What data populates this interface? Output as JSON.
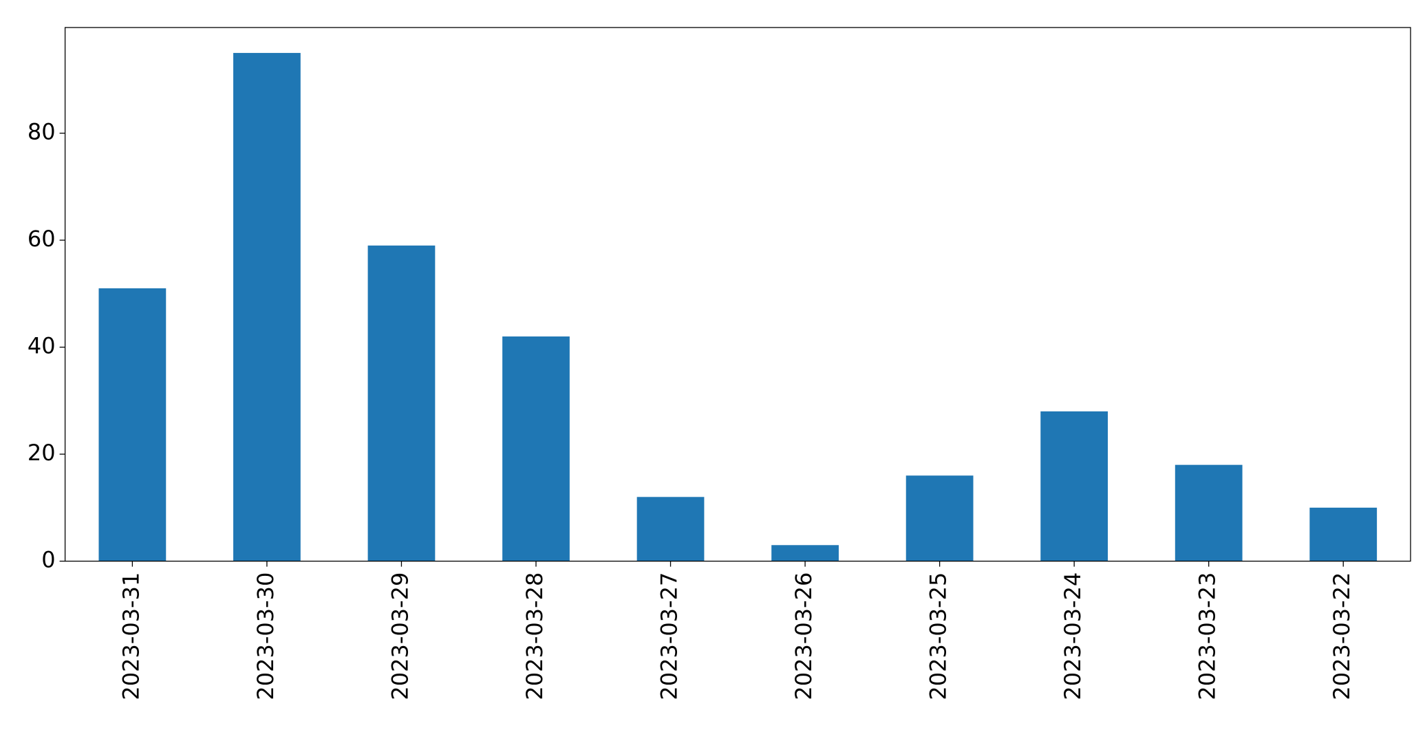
{
  "chart_data": {
    "type": "bar",
    "categories": [
      "2023-03-31",
      "2023-03-30",
      "2023-03-29",
      "2023-03-28",
      "2023-03-27",
      "2023-03-26",
      "2023-03-25",
      "2023-03-24",
      "2023-03-23",
      "2023-03-22"
    ],
    "values": [
      51,
      95,
      59,
      42,
      12,
      3,
      16,
      28,
      18,
      10
    ],
    "color": "#1f77b4",
    "ylim": [
      0,
      99.75
    ],
    "yticks": [
      0,
      20,
      40,
      60,
      80
    ],
    "grid": false
  }
}
